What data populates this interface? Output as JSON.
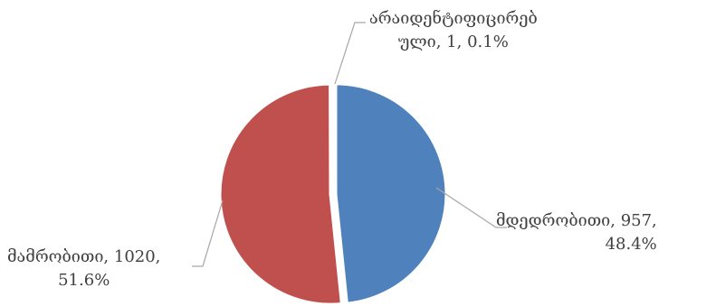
{
  "chart_data": {
    "type": "pie",
    "title": "",
    "slices": [
      {
        "name": "მდედრობითი",
        "value": 957,
        "percent": "48.4%",
        "color": "#4F81BD",
        "label_line1": "მდედრობითი, 957,",
        "label_line2": "48.4%"
      },
      {
        "name": "მამრობითი",
        "value": 1020,
        "percent": "51.6%",
        "color": "#C0504D",
        "label_line1": "მამრობითი, 1020,",
        "label_line2": "51.6%"
      },
      {
        "name": "არაიდენტიფიცირებული",
        "value": 1,
        "percent": "0.1%",
        "color": "#9BBB59",
        "label_line1": "არაიდენტიფიცირებ",
        "label_line2": "ული, 1, 0.1%"
      }
    ],
    "legend": false
  }
}
